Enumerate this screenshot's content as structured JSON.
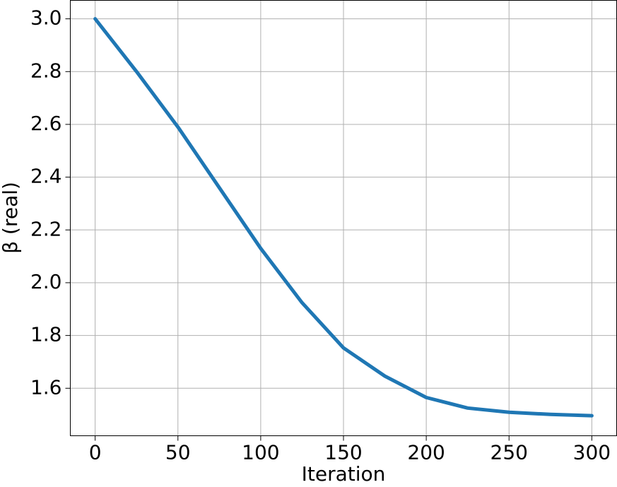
{
  "chart_data": {
    "type": "line",
    "x_label": "Iteration",
    "y_label": "β (real)",
    "x": [
      0,
      25,
      50,
      75,
      100,
      125,
      150,
      175,
      200,
      225,
      250,
      275,
      300
    ],
    "values": [
      3.0,
      2.8,
      2.59,
      2.36,
      2.13,
      1.924,
      1.753,
      1.646,
      1.565,
      1.525,
      1.509,
      1.501,
      1.496
    ],
    "color": "#1f77b4",
    "xlim": [
      -15,
      315
    ],
    "xticks": [
      0,
      50,
      100,
      150,
      200,
      250,
      300
    ],
    "ylim": [
      1.42,
      3.07
    ],
    "yticks": [
      1.6,
      1.8,
      {
        "value": 2,
        "label": "2.0"
      },
      2.2,
      2.4,
      2.6,
      2.8,
      {
        "value": 3,
        "label": "3.0"
      }
    ],
    "grid": true
  }
}
